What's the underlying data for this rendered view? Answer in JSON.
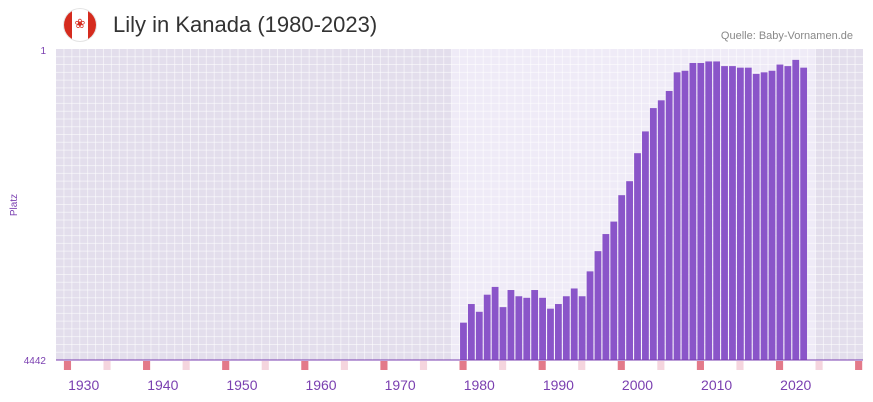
{
  "header": {
    "flag_icon": "canada-flag-icon",
    "title": "Lily in Kanada (1980-2023)",
    "source": "Quelle: Baby-Vornamen.de"
  },
  "colors": {
    "bar": "#8a55c9",
    "plot_bg": "#e3deec",
    "highlight_bg": "#efebf7",
    "tick_text": "#7a3fb0",
    "decade_marker": "#e37a8a",
    "minor_marker": "#f5d5de"
  },
  "chart_data": {
    "type": "bar",
    "title": "Lily in Kanada (1980-2023)",
    "ylabel": "Platz",
    "xlabel": "",
    "y_axis": {
      "top_label": "1",
      "bottom_label": "4442",
      "reversed": true,
      "scale": "relative rank height"
    },
    "xlim": [
      1927,
      2029
    ],
    "x_ticks": [
      "1930",
      "1940",
      "1950",
      "1960",
      "1970",
      "1980",
      "1990",
      "2000",
      "2010",
      "2020"
    ],
    "highlight_range": [
      1977,
      2023
    ],
    "x": [
      1978,
      1979,
      1980,
      1981,
      1982,
      1983,
      1984,
      1985,
      1986,
      1987,
      1988,
      1989,
      1990,
      1991,
      1992,
      1993,
      1994,
      1995,
      1996,
      1997,
      1998,
      1999,
      2000,
      2001,
      2002,
      2003,
      2004,
      2005,
      2006,
      2007,
      2008,
      2009,
      2010,
      2011,
      2012,
      2013,
      2014,
      2015,
      2016,
      2017,
      2018,
      2019,
      2020,
      2021
    ],
    "values": [
      0.12,
      0.18,
      0.155,
      0.21,
      0.235,
      0.17,
      0.225,
      0.205,
      0.2,
      0.225,
      0.2,
      0.165,
      0.18,
      0.205,
      0.23,
      0.205,
      0.285,
      0.35,
      0.405,
      0.445,
      0.53,
      0.575,
      0.665,
      0.735,
      0.81,
      0.835,
      0.865,
      0.925,
      0.93,
      0.955,
      0.955,
      0.96,
      0.96,
      0.945,
      0.945,
      0.94,
      0.94,
      0.92,
      0.925,
      0.93,
      0.95,
      0.945,
      0.965,
      0.94
    ]
  }
}
